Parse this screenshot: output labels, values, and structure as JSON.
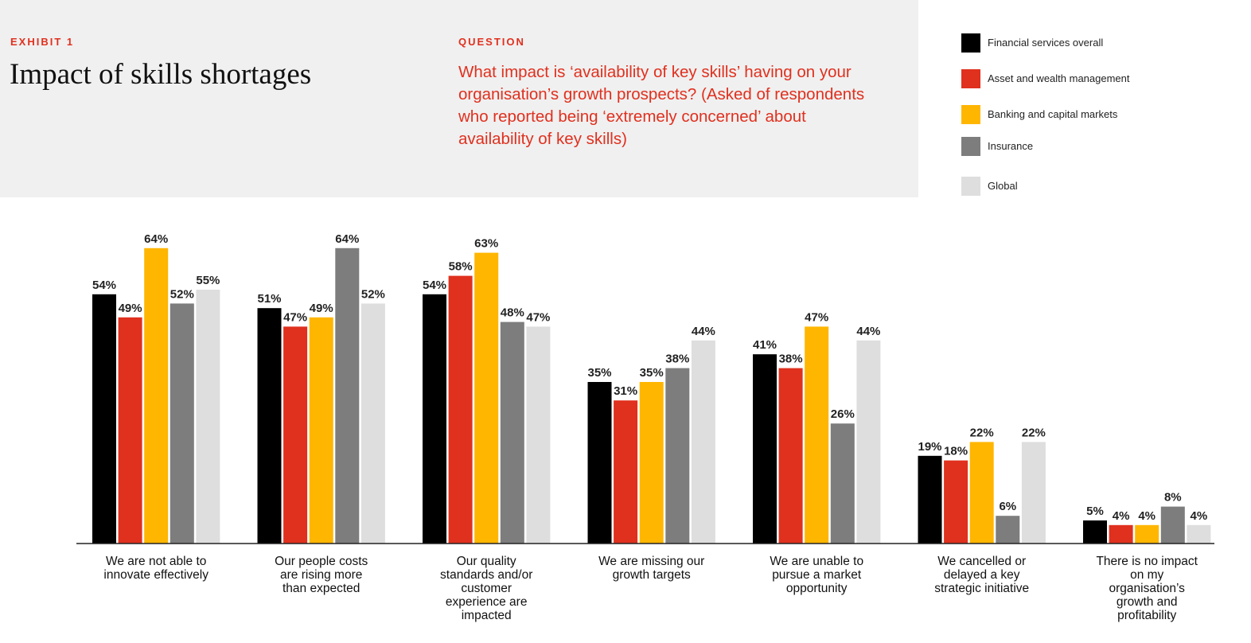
{
  "header": {
    "exhibit_label": "EXHIBIT 1",
    "title": "Impact of skills shortages",
    "question_label": "QUESTION",
    "question_text": "What impact is ‘availability of key skills’ having on your organisation’s growth prospects? (Asked of respondents who reported being ‘extremely concerned’ about availability of key skills)"
  },
  "colors": {
    "accent": "#e0301e",
    "header_bg": "#f0f0f0"
  },
  "chart_data": {
    "type": "bar",
    "title": "Impact of skills shortages",
    "xlabel": "",
    "ylabel": "",
    "ylim": [
      0,
      70
    ],
    "grid": false,
    "legend_position": "top-right",
    "value_suffix": "%",
    "categories": [
      [
        "We are not able to",
        "innovate effectively"
      ],
      [
        "Our people costs",
        "are rising more",
        "than expected"
      ],
      [
        "Our quality",
        "standards and/or",
        "customer",
        "experience are",
        "impacted"
      ],
      [
        "We are missing our",
        "growth targets"
      ],
      [
        "We are unable to",
        "pursue a market",
        "opportunity"
      ],
      [
        "We cancelled or",
        "delayed a key",
        "strategic initiative"
      ],
      [
        "There is no impact",
        "on my",
        "organisation’s",
        "growth and",
        "profitability"
      ]
    ],
    "series": [
      {
        "name": "Financial services overall",
        "color": "#000000",
        "values": [
          54,
          51,
          54,
          35,
          41,
          19,
          5
        ]
      },
      {
        "name": "Asset and wealth management",
        "color": "#e0301e",
        "values": [
          49,
          47,
          58,
          31,
          38,
          18,
          4
        ]
      },
      {
        "name": "Banking and capital markets",
        "color": "#ffb600",
        "values": [
          64,
          49,
          63,
          35,
          47,
          22,
          4
        ]
      },
      {
        "name": "Insurance",
        "color": "#7d7d7d",
        "values": [
          52,
          64,
          48,
          38,
          26,
          6,
          8
        ]
      },
      {
        "name": "Global",
        "color": "#dedede",
        "values": [
          55,
          52,
          47,
          44,
          44,
          22,
          4
        ]
      }
    ]
  }
}
